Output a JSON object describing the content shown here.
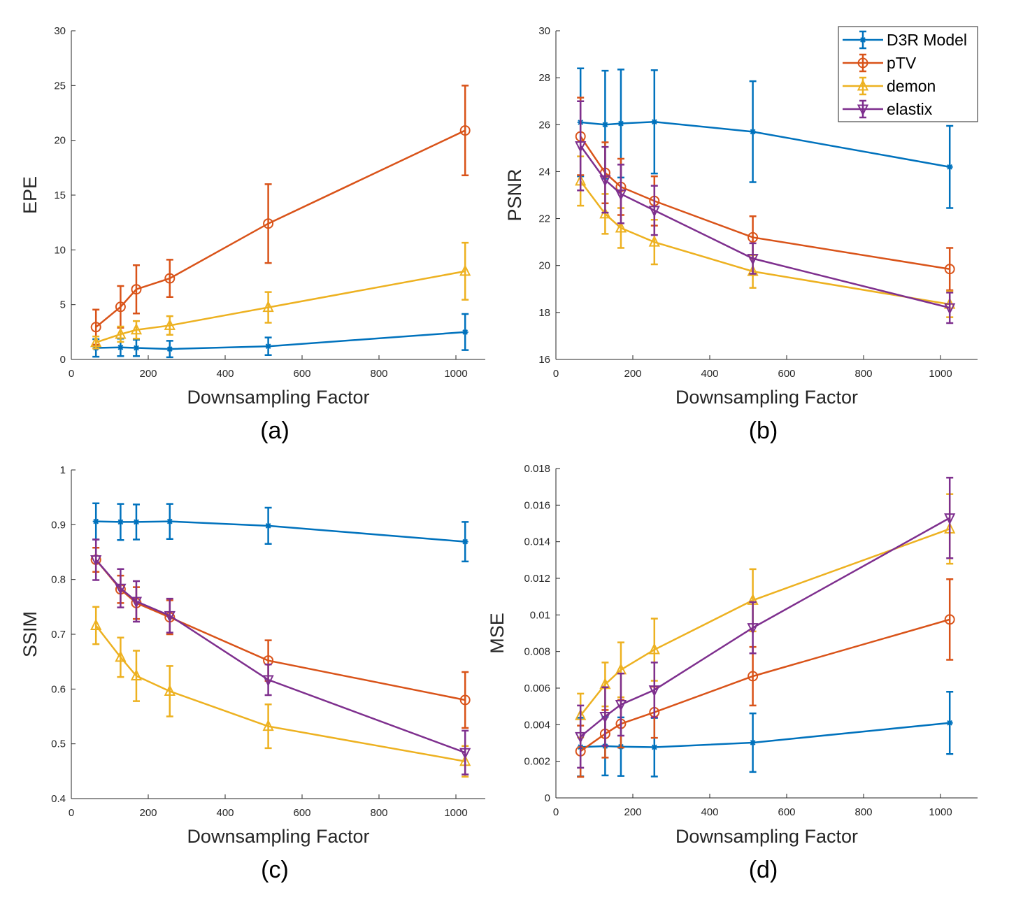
{
  "chart_data": [
    {
      "type": "line",
      "panel_label": "(a)",
      "title": "",
      "xlabel": "Downsampling Factor",
      "ylabel": "EPE",
      "xlim": [
        0,
        1080
      ],
      "ylim": [
        0,
        30
      ],
      "xticks": [
        0,
        200,
        400,
        600,
        800,
        1000
      ],
      "yticks": [
        0,
        5,
        10,
        15,
        20,
        25,
        30
      ],
      "ytick_labels": [
        "0",
        "5",
        "10",
        "15",
        "20",
        "25",
        "30"
      ],
      "grid": false,
      "x": [
        64,
        128,
        169,
        256,
        512,
        1024
      ],
      "series": [
        {
          "name": "D3R Model",
          "marker": "asterisk",
          "color": "#0072BD",
          "values": [
            1.05,
            1.1,
            1.05,
            0.95,
            1.2,
            2.5
          ],
          "err": [
            0.8,
            0.8,
            0.75,
            0.75,
            0.8,
            1.65
          ]
        },
        {
          "name": "pTV",
          "marker": "circle",
          "color": "#D95319",
          "values": [
            2.95,
            4.8,
            6.4,
            7.4,
            12.4,
            20.9
          ],
          "err": [
            1.6,
            1.9,
            2.2,
            1.7,
            3.6,
            4.1
          ]
        },
        {
          "name": "demon",
          "marker": "triangle-up",
          "color": "#EDB120",
          "values": [
            1.55,
            2.3,
            2.7,
            3.1,
            4.75,
            8.05
          ],
          "err": [
            0.55,
            0.7,
            0.8,
            0.85,
            1.4,
            2.6
          ]
        }
      ]
    },
    {
      "type": "line",
      "panel_label": "(b)",
      "title": "",
      "xlabel": "Downsampling Factor",
      "ylabel": "PSNR",
      "xlim": [
        0,
        1100
      ],
      "ylim": [
        16,
        30
      ],
      "xticks": [
        0,
        200,
        400,
        600,
        800,
        1000
      ],
      "yticks": [
        16,
        18,
        20,
        22,
        24,
        26,
        28,
        30
      ],
      "ytick_labels": [
        "16",
        "18",
        "20",
        "22",
        "24",
        "26",
        "28",
        "30"
      ],
      "grid": false,
      "legend": "top-right",
      "x": [
        64,
        128,
        169,
        256,
        512,
        1024
      ],
      "series": [
        {
          "name": "D3R Model",
          "marker": "asterisk",
          "color": "#0072BD",
          "values": [
            26.1,
            26.0,
            26.05,
            26.12,
            25.7,
            24.2
          ],
          "err": [
            2.3,
            2.3,
            2.3,
            2.2,
            2.15,
            1.75
          ]
        },
        {
          "name": "pTV",
          "marker": "circle",
          "color": "#D95319",
          "values": [
            25.5,
            23.95,
            23.35,
            22.75,
            21.2,
            19.85
          ],
          "err": [
            1.65,
            1.3,
            1.2,
            1.05,
            0.9,
            0.9
          ]
        },
        {
          "name": "demon",
          "marker": "triangle-up",
          "color": "#EDB120",
          "values": [
            23.6,
            22.2,
            21.6,
            21.0,
            19.75,
            18.35
          ],
          "err": [
            1.05,
            0.85,
            0.85,
            0.95,
            0.7,
            0.55
          ]
        },
        {
          "name": "elastix",
          "marker": "triangle-down",
          "color": "#7E2F8E",
          "values": [
            25.1,
            23.65,
            23.05,
            22.35,
            20.3,
            18.2
          ],
          "err": [
            1.9,
            1.4,
            1.25,
            1.05,
            0.65,
            0.65
          ]
        }
      ]
    },
    {
      "type": "line",
      "panel_label": "(c)",
      "title": "",
      "xlabel": "Downsampling Factor",
      "ylabel": "SSIM",
      "xlim": [
        0,
        1080
      ],
      "ylim": [
        0.4,
        1.0
      ],
      "xticks": [
        0,
        200,
        400,
        600,
        800,
        1000
      ],
      "yticks": [
        0.4,
        0.5,
        0.6,
        0.7,
        0.8,
        0.9,
        1.0
      ],
      "ytick_labels": [
        "0.4",
        "0.5",
        "0.6",
        "0.7",
        "0.8",
        "0.9",
        "1"
      ],
      "grid": false,
      "x": [
        64,
        128,
        169,
        256,
        512,
        1024
      ],
      "series": [
        {
          "name": "D3R Model",
          "marker": "asterisk",
          "color": "#0072BD",
          "values": [
            0.906,
            0.905,
            0.905,
            0.906,
            0.898,
            0.869
          ],
          "err": [
            0.033,
            0.033,
            0.032,
            0.032,
            0.033,
            0.036
          ]
        },
        {
          "name": "pTV",
          "marker": "circle",
          "color": "#D95319",
          "values": [
            0.836,
            0.782,
            0.757,
            0.731,
            0.652,
            0.58
          ],
          "err": [
            0.022,
            0.025,
            0.029,
            0.031,
            0.037,
            0.051
          ]
        },
        {
          "name": "demon",
          "marker": "triangle-up",
          "color": "#EDB120",
          "values": [
            0.716,
            0.658,
            0.624,
            0.596,
            0.532,
            0.468
          ],
          "err": [
            0.034,
            0.036,
            0.046,
            0.046,
            0.04,
            0.028
          ]
        },
        {
          "name": "elastix",
          "marker": "triangle-down",
          "color": "#7E2F8E",
          "values": [
            0.836,
            0.784,
            0.76,
            0.734,
            0.617,
            0.484
          ],
          "err": [
            0.037,
            0.035,
            0.037,
            0.031,
            0.028,
            0.04
          ]
        }
      ]
    },
    {
      "type": "line",
      "panel_label": "(d)",
      "title": "",
      "xlabel": "Downsampling Factor",
      "ylabel": "MSE",
      "xlim": [
        0,
        1100
      ],
      "ylim": [
        0,
        0.018
      ],
      "xticks": [
        0,
        200,
        400,
        600,
        800,
        1000
      ],
      "yticks": [
        0,
        0.002,
        0.004,
        0.006,
        0.008,
        0.01,
        0.012,
        0.014,
        0.016,
        0.018
      ],
      "ytick_labels": [
        "0",
        "0.002",
        "0.004",
        "0.006",
        "0.008",
        "0.01",
        "0.012",
        "0.014",
        "0.016",
        "0.018"
      ],
      "grid": false,
      "x": [
        64,
        128,
        169,
        256,
        512,
        1024
      ],
      "series": [
        {
          "name": "D3R Model",
          "marker": "asterisk",
          "color": "#0072BD",
          "values": [
            0.00278,
            0.00283,
            0.0028,
            0.00277,
            0.00302,
            0.0041
          ],
          "err": [
            0.0016,
            0.0016,
            0.0016,
            0.0016,
            0.0016,
            0.0017
          ]
        },
        {
          "name": "pTV",
          "marker": "circle",
          "color": "#D95319",
          "values": [
            0.00255,
            0.0035,
            0.00405,
            0.00468,
            0.00665,
            0.00975
          ],
          "err": [
            0.0014,
            0.0013,
            0.0013,
            0.0014,
            0.0016,
            0.0022
          ]
        },
        {
          "name": "demon",
          "marker": "triangle-up",
          "color": "#EDB120",
          "values": [
            0.0045,
            0.0062,
            0.007,
            0.0081,
            0.0108,
            0.0147
          ],
          "err": [
            0.0012,
            0.0012,
            0.0015,
            0.0017,
            0.0017,
            0.0019
          ]
        },
        {
          "name": "elastix",
          "marker": "triangle-down",
          "color": "#7E2F8E",
          "values": [
            0.00335,
            0.00445,
            0.0051,
            0.0059,
            0.0093,
            0.0153
          ],
          "err": [
            0.0017,
            0.0016,
            0.0017,
            0.0015,
            0.0014,
            0.0022
          ]
        }
      ]
    }
  ]
}
